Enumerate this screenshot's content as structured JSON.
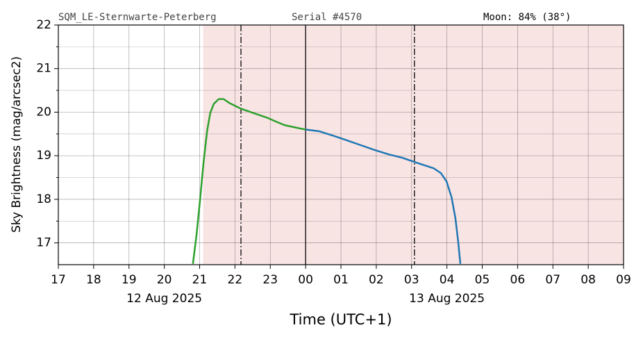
{
  "chart_data": {
    "type": "line",
    "header": {
      "site": "SQM_LE-Sternwarte-Peterberg",
      "serial": "Serial #4570",
      "moon": "Moon: 84% (38°)"
    },
    "xlabel": "Time (UTC+1)",
    "ylabel": "Sky Brightness (mag/arcsec2)",
    "xlim": [
      17,
      33
    ],
    "ylim": [
      16.5,
      22
    ],
    "xticks": [
      17,
      18,
      19,
      20,
      21,
      22,
      23,
      {
        "value": 24,
        "label": "00"
      },
      {
        "value": 25,
        "label": "01"
      },
      {
        "value": 26,
        "label": "02"
      },
      {
        "value": 27,
        "label": "03"
      },
      {
        "value": 28,
        "label": "04"
      },
      {
        "value": 29,
        "label": "05"
      },
      {
        "value": 30,
        "label": "06"
      },
      {
        "value": 31,
        "label": "07"
      },
      {
        "value": 32,
        "label": "08"
      },
      {
        "value": 33,
        "label": "09"
      }
    ],
    "xticks2": [
      {
        "value": 20,
        "label": "12 Aug 2025"
      },
      {
        "value": 28,
        "label": "13 Aug 2025"
      }
    ],
    "yticks": [
      17,
      18,
      19,
      20,
      21,
      22
    ],
    "yminorticks": [
      17.5,
      18.5,
      19.5,
      20.5,
      21.5
    ],
    "grid": true,
    "shade": {
      "x": [
        21.1,
        33
      ],
      "color": "#f9e4e4"
    },
    "vlines": [
      {
        "x": 22.17,
        "style": "dashdot"
      },
      {
        "x": 24,
        "style": "solid"
      },
      {
        "x": 27.08,
        "style": "dashdot"
      }
    ],
    "series": [
      {
        "color": "#2ca02c",
        "x": [
          20.81,
          20.91,
          21.01,
          21.11,
          21.21,
          21.3,
          21.4,
          21.54,
          21.68,
          21.84,
          22.17,
          22.52,
          22.92,
          23.17,
          23.41,
          23.7,
          24.0
        ],
        "values": [
          16.52,
          17.17,
          17.97,
          18.84,
          19.56,
          19.98,
          20.19,
          20.3,
          20.3,
          20.21,
          20.08,
          19.98,
          19.87,
          19.78,
          19.7,
          19.65,
          19.6
        ]
      },
      {
        "color": "#1f77b4",
        "x": [
          24.0,
          24.39,
          24.78,
          25.18,
          25.57,
          25.96,
          26.36,
          26.75,
          27.14,
          27.44,
          27.63,
          27.83,
          27.99,
          28.13,
          28.24,
          28.32,
          28.38
        ],
        "values": [
          19.6,
          19.56,
          19.46,
          19.35,
          19.24,
          19.13,
          19.03,
          18.95,
          18.84,
          18.76,
          18.71,
          18.6,
          18.41,
          18.05,
          17.57,
          17.02,
          16.52
        ]
      }
    ]
  }
}
